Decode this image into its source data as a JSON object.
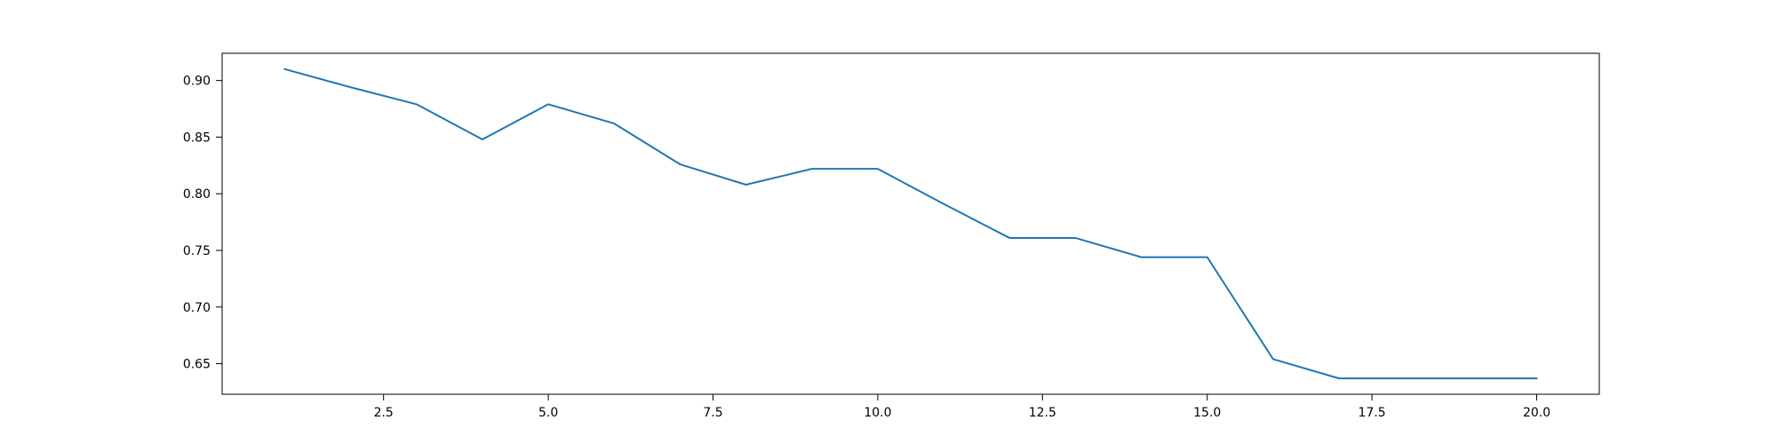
{
  "chart_data": {
    "type": "line",
    "title": "",
    "xlabel": "",
    "ylabel": "",
    "grid": false,
    "xlim": [
      0.05,
      20.95
    ],
    "ylim": [
      0.623,
      0.924
    ],
    "x": [
      1,
      2,
      3,
      4,
      5,
      6,
      7,
      8,
      9,
      10,
      11,
      12,
      13,
      14,
      15,
      16,
      17,
      18,
      19,
      20
    ],
    "series": [
      {
        "name": "",
        "color": "#1f77b4",
        "values": [
          0.91,
          0.894,
          0.879,
          0.848,
          0.879,
          0.862,
          0.826,
          0.808,
          0.822,
          0.822,
          0.791,
          0.761,
          0.761,
          0.744,
          0.744,
          0.654,
          0.637,
          0.637,
          0.637,
          0.637
        ]
      }
    ],
    "xticks": [
      2.5,
      5.0,
      7.5,
      10.0,
      12.5,
      15.0,
      17.5,
      20.0
    ],
    "xtick_labels": [
      "2.5",
      "5.0",
      "7.5",
      "10.0",
      "12.5",
      "15.0",
      "17.5",
      "20.0"
    ],
    "yticks": [
      0.65,
      0.7,
      0.75,
      0.8,
      0.85,
      0.9
    ],
    "ytick_labels": [
      "0.65",
      "0.70",
      "0.75",
      "0.80",
      "0.85",
      "0.90"
    ]
  }
}
